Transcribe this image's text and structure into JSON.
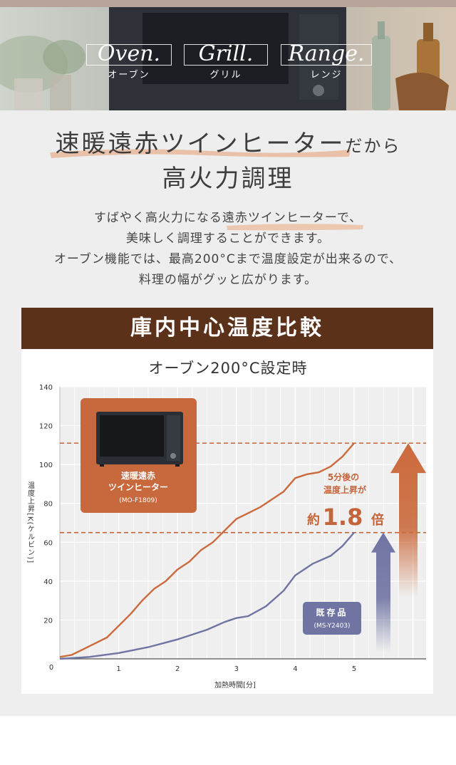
{
  "hero": {
    "words": [
      {
        "script": "Oven.",
        "kana": "オーブン"
      },
      {
        "script": "Grill.",
        "kana": "グリル"
      },
      {
        "script": "Range.",
        "kana": "レンジ"
      }
    ]
  },
  "headline": {
    "line1_main": "速暖遠赤ツインヒーター",
    "line1_sub": "だから",
    "line2": "高火力調理"
  },
  "body": {
    "lines": [
      "すばやく高火力になる遠赤ツインヒーターで、",
      "美味しく調理することができます。",
      "オーブン機能では、最高200°Cまで温度設定が出来るので、",
      "料理の幅がグッと広がります。"
    ]
  },
  "band_title": "庫内中心温度比較",
  "colors": {
    "orange": "#cb6a3d",
    "blue": "#6f74a3",
    "brown": "#5b3119",
    "grey_bg": "#eeeeee"
  },
  "chart_data": {
    "type": "line",
    "title": "オーブン200°C設定時",
    "xlabel": "加熱時間[分]",
    "ylabel": "温度上昇[K(ケルビン)]",
    "xlim": [
      0,
      6.2
    ],
    "ylim": [
      0,
      140
    ],
    "x_ticks": [
      1,
      2,
      3,
      4,
      5
    ],
    "y_ticks": [
      20,
      40,
      60,
      80,
      100,
      120,
      140
    ],
    "origin_label": "0",
    "grid": true,
    "series": [
      {
        "name": "速暖遠赤ツインヒーター",
        "model": "(MO-F1809)",
        "color": "#cb6a3d",
        "points": [
          [
            0,
            1
          ],
          [
            0.2,
            2
          ],
          [
            0.4,
            5
          ],
          [
            0.6,
            8
          ],
          [
            0.8,
            11
          ],
          [
            1.0,
            17
          ],
          [
            1.2,
            23
          ],
          [
            1.4,
            30
          ],
          [
            1.6,
            36
          ],
          [
            1.8,
            40
          ],
          [
            2.0,
            46
          ],
          [
            2.2,
            50
          ],
          [
            2.4,
            56
          ],
          [
            2.6,
            60
          ],
          [
            2.8,
            66
          ],
          [
            3.0,
            72
          ],
          [
            3.2,
            75
          ],
          [
            3.4,
            78
          ],
          [
            3.6,
            82
          ],
          [
            3.8,
            86
          ],
          [
            4.0,
            93
          ],
          [
            4.2,
            95
          ],
          [
            4.4,
            96
          ],
          [
            4.6,
            99
          ],
          [
            4.8,
            104
          ],
          [
            5.0,
            111
          ]
        ]
      },
      {
        "name": "既存品",
        "model": "(MS-Y2403)",
        "color": "#6f74a3",
        "points": [
          [
            0,
            0
          ],
          [
            0.5,
            1
          ],
          [
            1.0,
            3
          ],
          [
            1.5,
            6
          ],
          [
            2.0,
            10
          ],
          [
            2.5,
            15
          ],
          [
            2.8,
            19
          ],
          [
            3.0,
            21
          ],
          [
            3.2,
            22
          ],
          [
            3.5,
            27
          ],
          [
            3.8,
            35
          ],
          [
            4.0,
            43
          ],
          [
            4.3,
            49
          ],
          [
            4.6,
            53
          ],
          [
            4.8,
            58
          ],
          [
            5.0,
            65
          ]
        ]
      }
    ],
    "reference_lines": [
      111,
      65
    ],
    "annotation": {
      "line1": "5分後の",
      "line2": "温度上昇が",
      "prefix": "約",
      "value": "1.8",
      "suffix": "倍"
    }
  }
}
